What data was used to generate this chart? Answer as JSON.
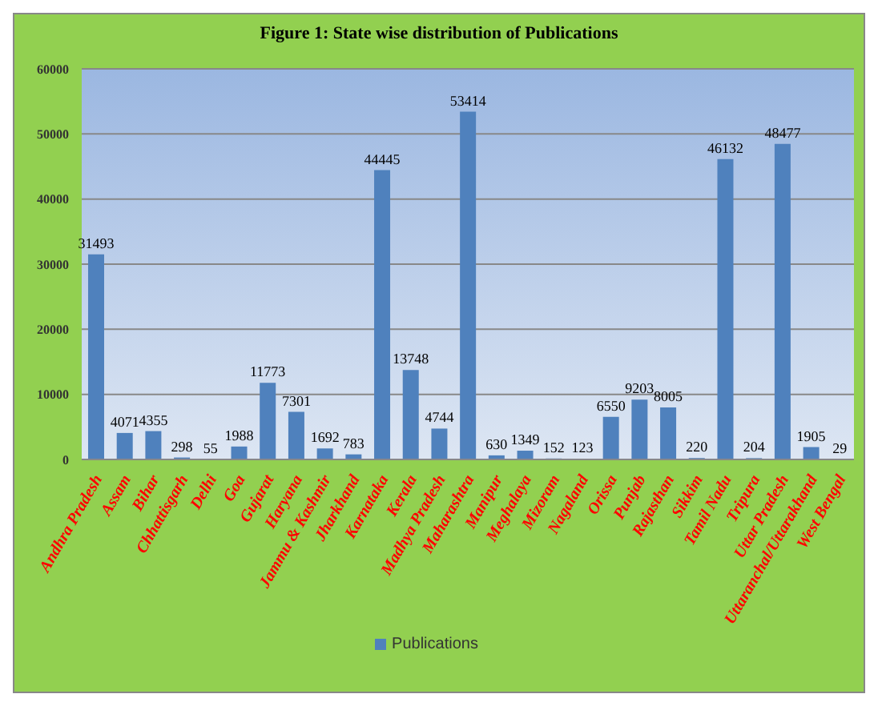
{
  "chart_data": {
    "type": "bar",
    "title": "Figure 1: State wise distribution of Publications",
    "categories": [
      "Andhra Pradesh",
      "Assam",
      "Bihar",
      "Chhattisgarh",
      "Delhi",
      "Goa",
      "Gujarat",
      "Haryana",
      "Jammu & Kashmir",
      "Jharkhand",
      "Karnataka",
      "Kerala",
      "Madhya Pradesh",
      "Maharashtra",
      "Manipur",
      "Meghalaya",
      "Mizoram",
      "Nagaland",
      "Orissa",
      "Punjab",
      "Rajasthan",
      "Sikkim",
      "Tamil Nadu",
      "Tripura",
      "Uttar Pradesh",
      "Uttaranchal/Uttarakhand",
      "West Bengal"
    ],
    "series": [
      {
        "name": "Publications",
        "color": "#4f81bd",
        "values": [
          31493,
          4071,
          4355,
          298,
          55,
          1988,
          11773,
          7301,
          1692,
          783,
          44445,
          13748,
          4744,
          53414,
          630,
          1349,
          152,
          123,
          6550,
          9203,
          8005,
          220,
          46132,
          204,
          48477,
          1905,
          29
        ]
      }
    ],
    "ylim": [
      0,
      60000
    ],
    "yticks": [
      0,
      10000,
      20000,
      30000,
      40000,
      50000,
      60000
    ],
    "grid": "y",
    "legend": "bottom",
    "data_labels": true
  }
}
